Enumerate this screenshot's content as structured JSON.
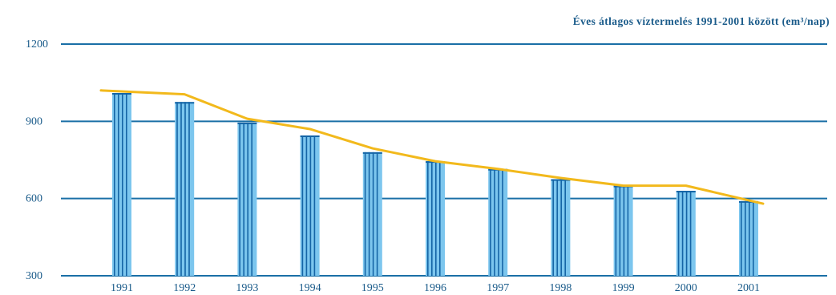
{
  "chart_data": {
    "type": "bar",
    "title": "Éves átlagos víztermelés 1991-2001 között (em³/nap)",
    "categories": [
      "1991",
      "1992",
      "1993",
      "1994",
      "1995",
      "1996",
      "1997",
      "1998",
      "1999",
      "2000",
      "2001"
    ],
    "values": [
      1010,
      975,
      895,
      845,
      780,
      745,
      715,
      675,
      650,
      630,
      590
    ],
    "line_values": [
      1020,
      1005,
      910,
      870,
      795,
      745,
      715,
      680,
      650,
      650,
      580
    ],
    "yticks": [
      "1200",
      "900",
      "600",
      "300"
    ],
    "ylim": [
      300,
      1200
    ],
    "grid": true,
    "colors": {
      "bar_light": "#7cc6ee",
      "bar_dark": "#1565a6",
      "line": "#f2b91c",
      "grid": "#1a6fa6",
      "text": "#1a5b8a"
    }
  }
}
